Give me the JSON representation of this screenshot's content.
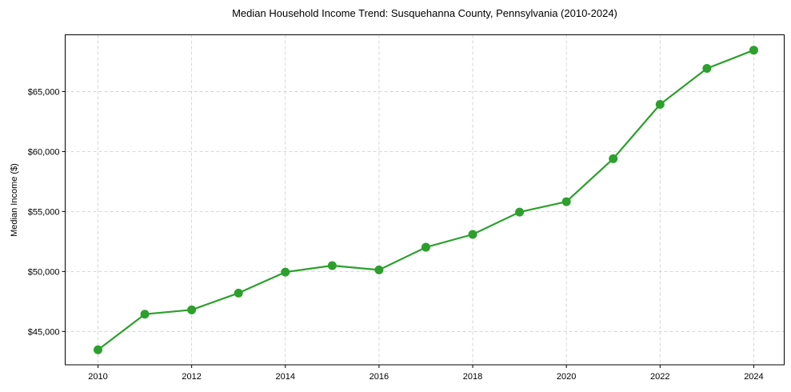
{
  "chart_data": {
    "type": "line",
    "title": "Median Household Income Trend: Susquehanna County, Pennsylvania (2010-2024)",
    "xlabel": "",
    "ylabel": "Median Income ($)",
    "x": [
      2010,
      2011,
      2012,
      2013,
      2014,
      2015,
      2016,
      2017,
      2018,
      2019,
      2020,
      2021,
      2022,
      2023,
      2024
    ],
    "series": [
      {
        "name": "Median Household Income",
        "color": "#2ca02c",
        "values": [
          43470,
          46440,
          46800,
          48200,
          49950,
          50490,
          50130,
          52020,
          53090,
          54950,
          55820,
          59400,
          63930,
          66930,
          68450
        ]
      }
    ],
    "xticks": [
      2010,
      2012,
      2014,
      2016,
      2018,
      2020,
      2022,
      2024
    ],
    "xtick_labels": [
      "2010",
      "2012",
      "2014",
      "2016",
      "2018",
      "2020",
      "2022",
      "2024"
    ],
    "yticks": [
      45000,
      50000,
      55000,
      60000,
      65000
    ],
    "ytick_labels": [
      "$45,000",
      "$50,000",
      "$55,000",
      "$60,000",
      "$65,000"
    ],
    "xlim": [
      2009.3,
      2024.65
    ],
    "ylim": [
      42220,
      69730
    ],
    "grid": true,
    "legend": null
  }
}
